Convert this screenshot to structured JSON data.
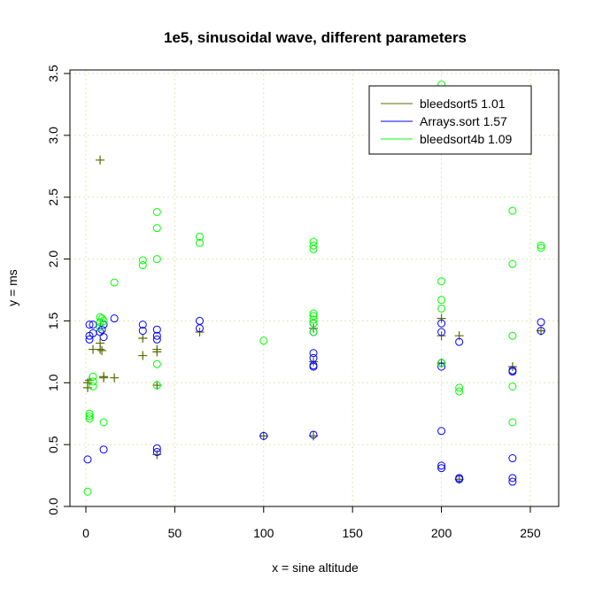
{
  "chart_data": {
    "type": "scatter",
    "title": "1e5, sinusoidal wave, different parameters",
    "xlabel": "x = sine altitude",
    "ylabel": "y = ms",
    "xlim": [
      0,
      256
    ],
    "ylim": [
      0,
      3.5
    ],
    "xticks": [
      0,
      50,
      100,
      150,
      200,
      250
    ],
    "yticks": [
      0.0,
      0.5,
      1.0,
      1.5,
      2.0,
      2.5,
      3.0,
      3.5
    ],
    "xtick_labels": [
      "0",
      "50",
      "100",
      "150",
      "200",
      "250"
    ],
    "ytick_labels": [
      "0.0",
      "0.5",
      "1.0",
      "1.5",
      "2.0",
      "2.5",
      "3.0",
      "3.5"
    ],
    "grid": true,
    "legend_position": "top-right",
    "series": [
      {
        "name": "bleedsort5  1.01",
        "color": "#556b00",
        "marker": "plus",
        "points": [
          [
            1,
            1.0
          ],
          [
            1,
            0.96
          ],
          [
            2,
            1.02
          ],
          [
            4,
            1.27
          ],
          [
            8,
            2.8
          ],
          [
            8,
            1.32
          ],
          [
            8,
            1.27
          ],
          [
            9,
            1.26
          ],
          [
            10,
            1.04
          ],
          [
            10,
            1.05
          ],
          [
            16,
            1.04
          ],
          [
            32,
            1.36
          ],
          [
            32,
            1.22
          ],
          [
            40,
            1.27
          ],
          [
            40,
            1.25
          ],
          [
            40,
            0.98
          ],
          [
            40,
            0.42
          ],
          [
            64,
            1.41
          ],
          [
            100,
            0.57
          ],
          [
            128,
            1.44
          ],
          [
            128,
            1.17
          ],
          [
            128,
            0.57
          ],
          [
            200,
            1.52
          ],
          [
            200,
            1.38
          ],
          [
            200,
            1.16
          ],
          [
            210,
            1.38
          ],
          [
            210,
            0.22
          ],
          [
            240,
            1.13
          ],
          [
            256,
            1.42
          ]
        ]
      },
      {
        "name": "Arrays.sort 1.57",
        "color": "#0000ff",
        "marker": "circle",
        "points": [
          [
            1,
            0.38
          ],
          [
            2,
            1.47
          ],
          [
            2,
            1.38
          ],
          [
            2,
            1.35
          ],
          [
            4,
            1.4
          ],
          [
            4,
            1.47
          ],
          [
            8,
            1.41
          ],
          [
            9,
            1.43
          ],
          [
            10,
            1.37
          ],
          [
            10,
            1.47
          ],
          [
            10,
            0.46
          ],
          [
            16,
            1.52
          ],
          [
            32,
            1.47
          ],
          [
            32,
            1.42
          ],
          [
            40,
            1.43
          ],
          [
            40,
            1.38
          ],
          [
            40,
            1.35
          ],
          [
            40,
            0.47
          ],
          [
            40,
            0.44
          ],
          [
            64,
            1.5
          ],
          [
            64,
            1.44
          ],
          [
            100,
            0.57
          ],
          [
            128,
            1.48
          ],
          [
            128,
            1.41
          ],
          [
            128,
            1.24
          ],
          [
            128,
            1.2
          ],
          [
            128,
            1.14
          ],
          [
            128,
            1.13
          ],
          [
            128,
            0.58
          ],
          [
            200,
            1.48
          ],
          [
            200,
            1.41
          ],
          [
            200,
            1.16
          ],
          [
            200,
            1.13
          ],
          [
            200,
            0.61
          ],
          [
            200,
            0.33
          ],
          [
            200,
            0.31
          ],
          [
            210,
            1.33
          ],
          [
            210,
            0.23
          ],
          [
            210,
            0.22
          ],
          [
            240,
            1.1
          ],
          [
            240,
            1.09
          ],
          [
            240,
            0.39
          ],
          [
            240,
            0.23
          ],
          [
            240,
            0.2
          ],
          [
            256,
            1.49
          ],
          [
            256,
            1.42
          ]
        ]
      },
      {
        "name": "bleedsort4b 1.09",
        "color": "#00ff00",
        "marker": "circle",
        "points": [
          [
            1,
            0.12
          ],
          [
            2,
            0.75
          ],
          [
            2,
            0.73
          ],
          [
            2,
            0.71
          ],
          [
            4,
            1.05
          ],
          [
            4,
            1.01
          ],
          [
            4,
            0.97
          ],
          [
            8,
            1.53
          ],
          [
            8,
            1.49
          ],
          [
            8,
            1.45
          ],
          [
            9,
            1.52
          ],
          [
            10,
            1.5
          ],
          [
            10,
            0.68
          ],
          [
            16,
            1.81
          ],
          [
            32,
            1.99
          ],
          [
            32,
            1.95
          ],
          [
            40,
            2.38
          ],
          [
            40,
            2.25
          ],
          [
            40,
            2.0
          ],
          [
            40,
            1.15
          ],
          [
            40,
            0.98
          ],
          [
            64,
            2.18
          ],
          [
            64,
            2.13
          ],
          [
            100,
            1.34
          ],
          [
            128,
            2.14
          ],
          [
            128,
            2.11
          ],
          [
            128,
            2.08
          ],
          [
            128,
            1.56
          ],
          [
            128,
            1.54
          ],
          [
            128,
            1.51
          ],
          [
            128,
            1.48
          ],
          [
            128,
            1.41
          ],
          [
            200,
            3.41
          ],
          [
            200,
            3.1
          ],
          [
            200,
            1.82
          ],
          [
            200,
            1.67
          ],
          [
            200,
            1.6
          ],
          [
            200,
            1.16
          ],
          [
            210,
            3.35
          ],
          [
            210,
            0.96
          ],
          [
            210,
            0.93
          ],
          [
            240,
            2.39
          ],
          [
            240,
            1.96
          ],
          [
            240,
            1.38
          ],
          [
            240,
            0.97
          ],
          [
            240,
            0.68
          ],
          [
            256,
            2.11
          ],
          [
            256,
            2.09
          ]
        ]
      }
    ]
  }
}
